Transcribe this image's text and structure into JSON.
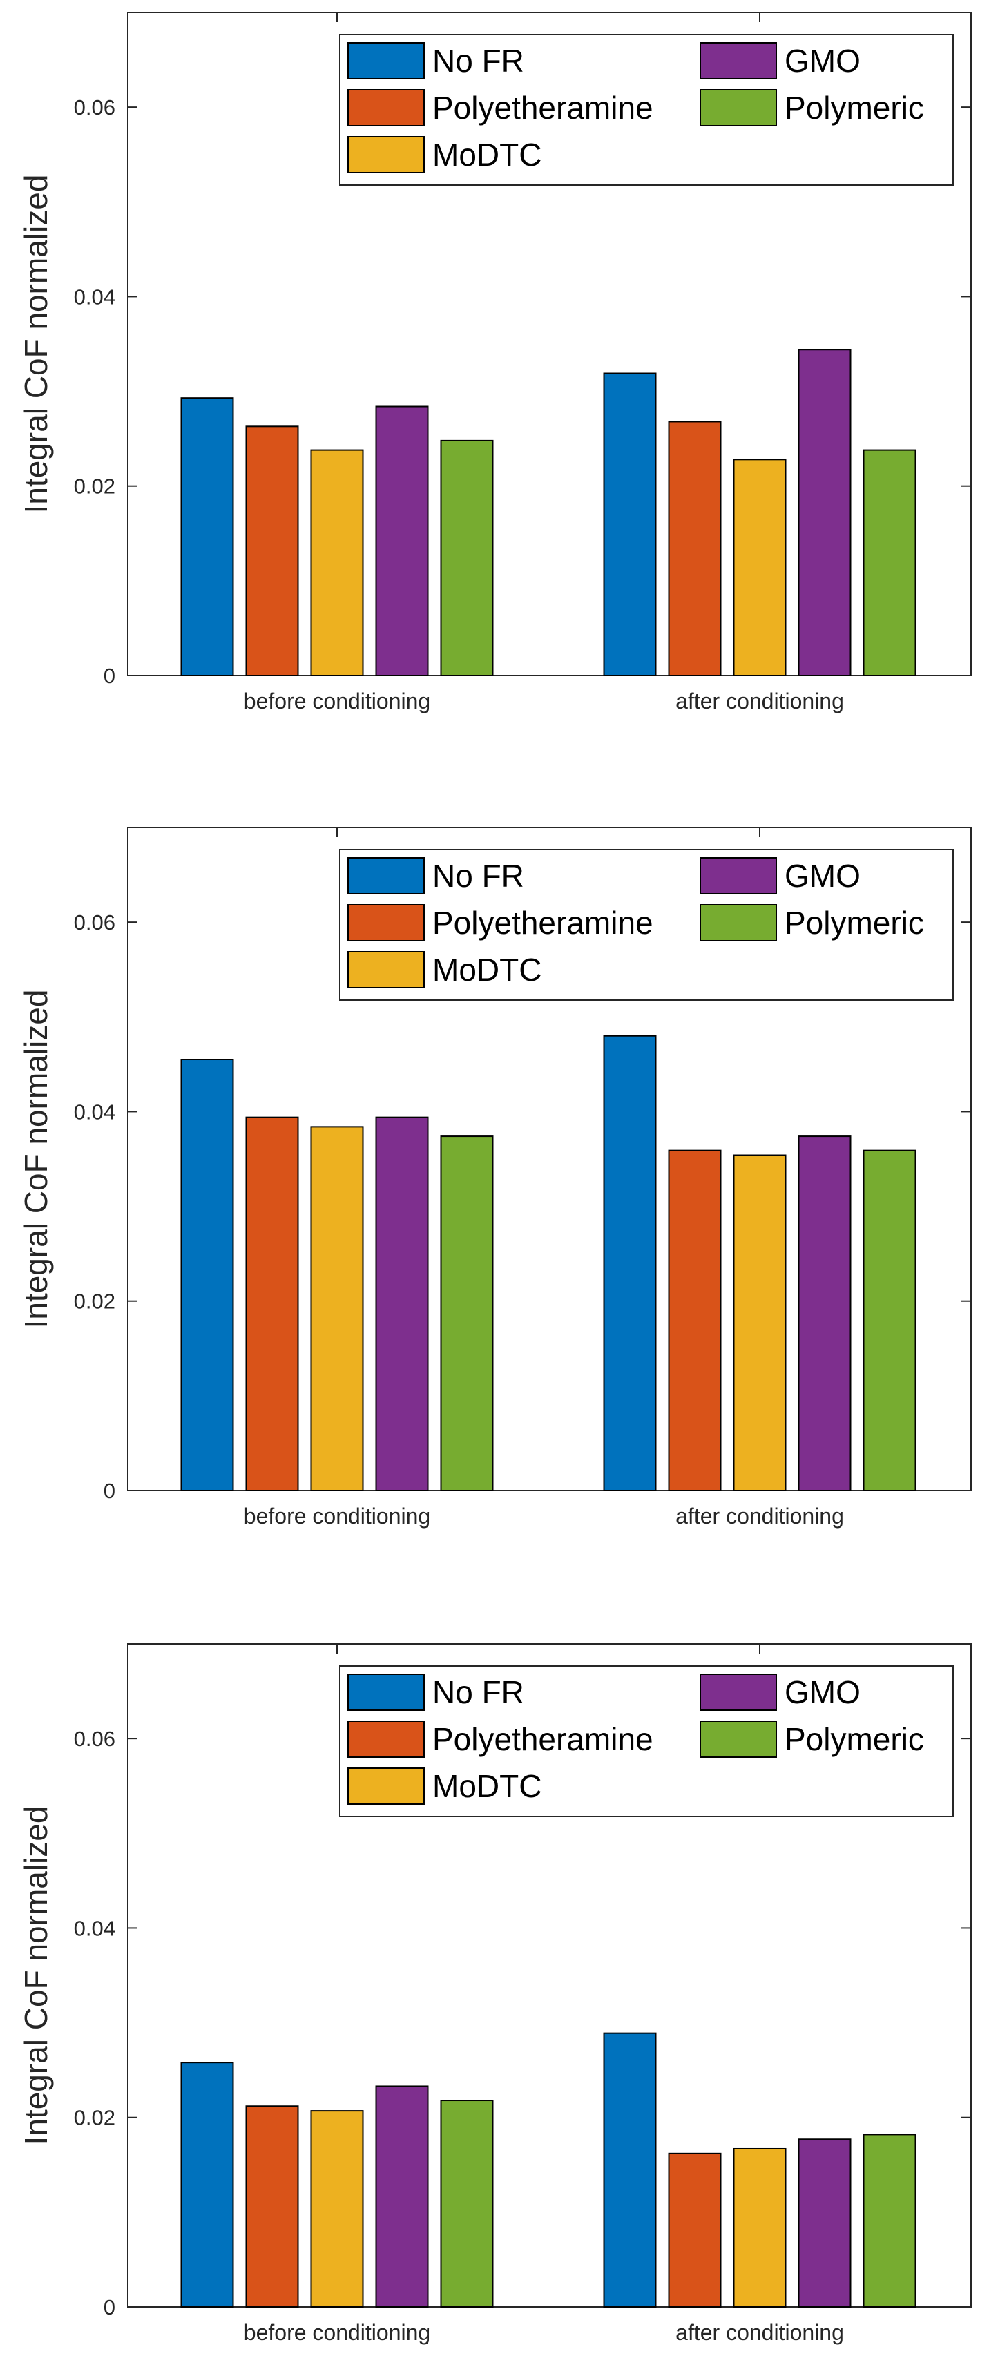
{
  "chart_data": [
    {
      "type": "bar",
      "title": "",
      "xlabel": "",
      "ylabel": "Integral CoF normalized",
      "ylim": [
        0,
        0.07
      ],
      "yticks": [
        "0",
        "0.02",
        "0.04",
        "0.06"
      ],
      "grid": false,
      "legend_position": "top-right",
      "categories": [
        "before conditioning",
        "after conditioning"
      ],
      "series": [
        {
          "name": "No FR",
          "color": "#0072BD",
          "values": [
            0.0293,
            0.0319
          ]
        },
        {
          "name": "Polyetheramine",
          "color": "#D95319",
          "values": [
            0.0263,
            0.0268
          ]
        },
        {
          "name": "MoDTC",
          "color": "#EDB120",
          "values": [
            0.0238,
            0.0228
          ]
        },
        {
          "name": "GMO",
          "color": "#7E2F8E",
          "values": [
            0.0284,
            0.0344
          ]
        },
        {
          "name": "Polymeric",
          "color": "#77AC30",
          "values": [
            0.0248,
            0.0238
          ]
        }
      ]
    },
    {
      "type": "bar",
      "title": "",
      "xlabel": "",
      "ylabel": "Integral CoF normalized",
      "ylim": [
        0,
        0.07
      ],
      "yticks": [
        "0",
        "0.02",
        "0.04",
        "0.06"
      ],
      "grid": false,
      "legend_position": "top-right",
      "categories": [
        "before conditioning",
        "after conditioning"
      ],
      "series": [
        {
          "name": "No FR",
          "color": "#0072BD",
          "values": [
            0.0455,
            0.048
          ]
        },
        {
          "name": "Polyetheramine",
          "color": "#D95319",
          "values": [
            0.0394,
            0.0359
          ]
        },
        {
          "name": "MoDTC",
          "color": "#EDB120",
          "values": [
            0.0384,
            0.0354
          ]
        },
        {
          "name": "GMO",
          "color": "#7E2F8E",
          "values": [
            0.0394,
            0.0374
          ]
        },
        {
          "name": "Polymeric",
          "color": "#77AC30",
          "values": [
            0.0374,
            0.0359
          ]
        }
      ]
    },
    {
      "type": "bar",
      "title": "",
      "xlabel": "",
      "ylabel": "Integral CoF normalized",
      "ylim": [
        0,
        0.07
      ],
      "yticks": [
        "0",
        "0.02",
        "0.04",
        "0.06"
      ],
      "grid": false,
      "legend_position": "top-right",
      "categories": [
        "before conditioning",
        "after conditioning"
      ],
      "series": [
        {
          "name": "No FR",
          "color": "#0072BD",
          "values": [
            0.0258,
            0.0289
          ]
        },
        {
          "name": "Polyetheramine",
          "color": "#D95319",
          "values": [
            0.0212,
            0.0162
          ]
        },
        {
          "name": "MoDTC",
          "color": "#EDB120",
          "values": [
            0.0207,
            0.0167
          ]
        },
        {
          "name": "GMO",
          "color": "#7E2F8E",
          "values": [
            0.0233,
            0.0177
          ]
        },
        {
          "name": "Polymeric",
          "color": "#77AC30",
          "values": [
            0.0218,
            0.0182
          ]
        }
      ]
    }
  ]
}
